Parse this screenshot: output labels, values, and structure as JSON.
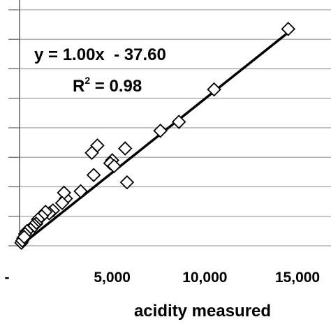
{
  "chart_data": {
    "type": "scatter",
    "title": "",
    "xlabel": "acidity measured",
    "ylabel": "",
    "xlim": [
      0,
      15000
    ],
    "ylim": [
      0,
      16000
    ],
    "x_ticks": [
      0,
      5000,
      10000,
      15000
    ],
    "x_tick_labels": [
      "-",
      "5,000",
      "10,000",
      "15,000"
    ],
    "y_gridlines": [
      0,
      2000,
      4000,
      6000,
      8000,
      10000,
      12000,
      14000,
      16000
    ],
    "grid": "horizontal",
    "marker": "diamond-open",
    "trendline": {
      "slope": 1.0,
      "intercept": -37.6,
      "equation_text": "y = 1.00x  - 37.60",
      "r2_prefix": "R",
      "r2_exp": "2",
      "r2_value_text": " = 0.98"
    },
    "x": [
      14500,
      10500,
      8600,
      7600,
      5700,
      5800,
      4200,
      3900,
      5000,
      4900,
      5100,
      4000,
      3300,
      2500,
      2400,
      2300,
      1800,
      1600,
      1400,
      1200,
      1000,
      900,
      800,
      700,
      600,
      500,
      400,
      300,
      200,
      100,
      150,
      250
    ],
    "y": [
      14700,
      10600,
      8400,
      7800,
      6600,
      4300,
      6800,
      6300,
      5800,
      5600,
      5400,
      4800,
      3700,
      3200,
      3600,
      2900,
      2400,
      2200,
      2300,
      2000,
      1800,
      1500,
      1400,
      1300,
      1100,
      900,
      1000,
      800,
      500,
      200,
      350,
      600
    ]
  }
}
